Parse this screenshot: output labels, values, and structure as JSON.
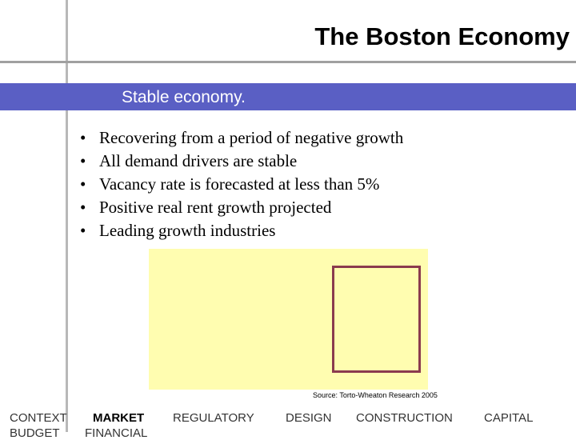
{
  "title": "The Boston Economy",
  "band": {
    "text": "Stable economy."
  },
  "bullets": [
    {
      "marker": "•",
      "text": "Recovering from a period of negative growth"
    },
    {
      "marker": "•",
      "text": "All demand drivers are stable"
    },
    {
      "marker": "•",
      "text": "Vacancy rate is forecasted at less than 5%"
    },
    {
      "marker": "•",
      "text": "Positive real rent growth projected"
    },
    {
      "marker": "•",
      "text": "Leading growth industries"
    }
  ],
  "source": "Source: Torto-Wheaton Research 2005",
  "nav": {
    "items": [
      "CONTEXT",
      "MARKET",
      "REGULATORY",
      "DESIGN",
      "CONSTRUCTION",
      "CAPITAL"
    ],
    "sub_items": [
      "BUDGET",
      "FINANCIAL"
    ]
  },
  "colors": {
    "band": "#5a5fc4",
    "chart_background": "#fffdb0",
    "chart_frame": "#8b3b4e"
  }
}
